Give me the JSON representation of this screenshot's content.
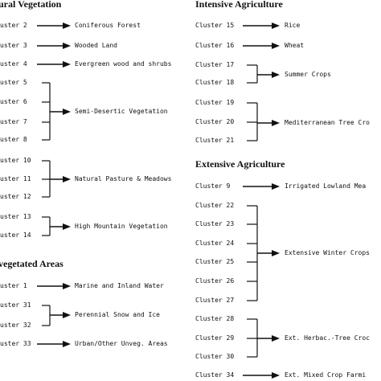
{
  "headers": {
    "natural": "ural Vegetation",
    "intensive": "Intensive Agriculture",
    "extensive": "Extensive Agriculture",
    "unvegetated": "vegetated Areas"
  },
  "left": {
    "natural": {
      "clusters": [
        "uster 2",
        "uster 3",
        "uster 4",
        "uster 5",
        "uster 6",
        "uster 7",
        "uster 8",
        "uster 10",
        "uster 11",
        "uster 12",
        "uster 13",
        "uster 14"
      ],
      "targets": [
        "Coniferous Forest",
        "Wooded Land",
        "Evergreen wood and shrubs",
        "Semi-Desertic Vegetation",
        "Natural Pasture & Meadows",
        "High Mountain Vegetation"
      ]
    },
    "unvegetated": {
      "clusters": [
        "uster 1",
        "uster 31",
        "uster 32",
        "uster 33"
      ],
      "targets": [
        "Marine and Inland Water",
        "Perennial Snow and Ice",
        "Urban/Other Unveg. Areas"
      ]
    }
  },
  "right": {
    "intensive": {
      "clusters": [
        "Cluster 15",
        "Cluster 16",
        "Cluster 17",
        "Cluster 18",
        "Cluster 19",
        "Cluster 20",
        "Cluster 21"
      ],
      "targets": [
        "Rice",
        "Wheat",
        "Summer Crops",
        "Mediterranean Tree Cro"
      ]
    },
    "extensive": {
      "clusters": [
        "Cluster 9",
        "Cluster 22",
        "Cluster 23",
        "Cluster 24",
        "Cluster 25",
        "Cluster 26",
        "Cluster 27",
        "Cluster 28",
        "Cluster 29",
        "Cluster 30",
        "Cluster 34"
      ],
      "targets": [
        "Irrigated Lowland Mea",
        "Extensive Winter Crops",
        "Ext. Herbac.-Tree Croc",
        "Ext. Mixed Crop Farmi"
      ]
    }
  }
}
